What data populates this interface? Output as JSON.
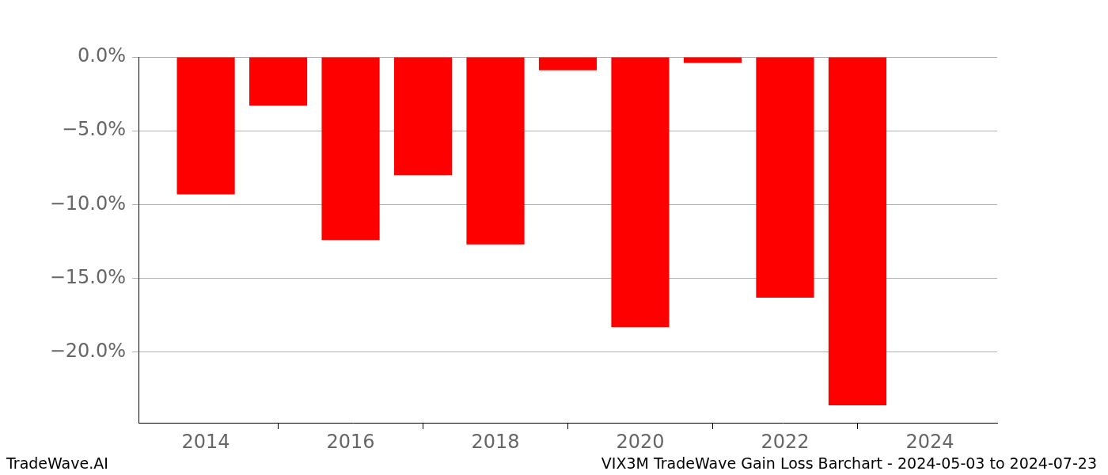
{
  "chart_data": {
    "type": "bar",
    "annotations": [
      "TradeWave.AI",
      "VIX3M TradeWave Gain Loss Barchart - 2024-05-03 to 2024-07-23"
    ],
    "x": [
      2014,
      2015,
      2016,
      2017,
      2018,
      2019,
      2020,
      2021,
      2022,
      2023
    ],
    "values": [
      -9.3,
      -3.3,
      -12.4,
      -8.0,
      -12.7,
      -0.9,
      -18.3,
      -0.4,
      -16.3,
      -23.6
    ],
    "color": "#ff0000",
    "xlim": [
      2013.07,
      2024.93
    ],
    "xticks": [
      2014,
      2016,
      2018,
      2020,
      2022,
      2024
    ],
    "ylim": [
      -24.78,
      0
    ],
    "yticks": [
      {
        "value": 0,
        "label": "0.0%"
      },
      {
        "value": -5,
        "label": "−5.0%"
      },
      {
        "value": -10,
        "label": "−10.0%"
      },
      {
        "value": -15,
        "label": "−15.0%"
      },
      {
        "value": -20,
        "label": "−20.0%"
      }
    ],
    "grid": true
  }
}
